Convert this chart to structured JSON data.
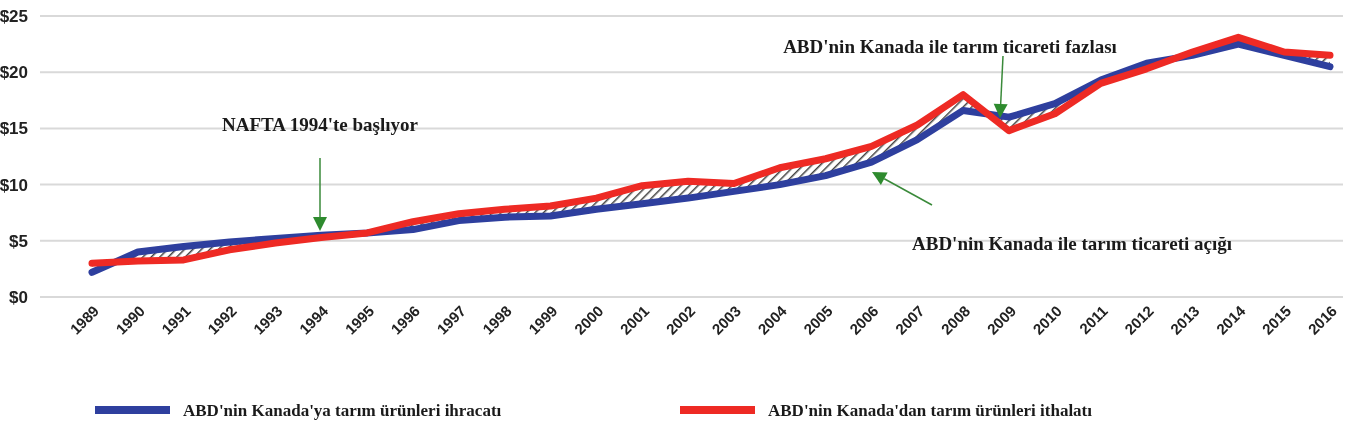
{
  "chart_data": {
    "type": "line",
    "categories": [
      "1989",
      "1990",
      "1991",
      "1992",
      "1993",
      "1994",
      "1995",
      "1996",
      "1997",
      "1998",
      "1999",
      "2000",
      "2001",
      "2002",
      "2003",
      "2004",
      "2005",
      "2006",
      "2007",
      "2008",
      "2009",
      "2010",
      "2011",
      "2012",
      "2013",
      "2014",
      "2015",
      "2016"
    ],
    "series": [
      {
        "name": "ABD'nin Kanada'ya tarım ürünleri ihracatı",
        "color": "#2e3f9e",
        "values": [
          2.2,
          4.0,
          4.5,
          4.9,
          5.2,
          5.5,
          5.7,
          6.0,
          6.8,
          7.1,
          7.2,
          7.8,
          8.3,
          8.8,
          9.4,
          10.0,
          10.8,
          12.0,
          14.0,
          16.6,
          16.0,
          17.2,
          19.3,
          20.8,
          21.5,
          22.5,
          21.5,
          20.5
        ],
        "lower": [
          2.2,
          4.0,
          4.5,
          4.9,
          5.2,
          5.5,
          5.7,
          6.0,
          6.8,
          7.1,
          7.2,
          7.8,
          8.3,
          8.8,
          9.4,
          10.0,
          10.8,
          12.0,
          14.0,
          16.6,
          16.0,
          17.2,
          19.3,
          20.8,
          21.5,
          22.5,
          21.5,
          20.5
        ],
        "upper": [
          3.0,
          3.2,
          3.3,
          4.2,
          4.8,
          5.3,
          5.7,
          6.7,
          7.4,
          7.8,
          8.1,
          8.8,
          9.9,
          10.3,
          10.1,
          11.5,
          12.3,
          13.4,
          15.3,
          18.0,
          14.8,
          16.3,
          19.0,
          20.3,
          21.8,
          23.1,
          21.8,
          21.5
        ]
      },
      {
        "name": "ABD'nin Kanada'dan tarım ürünleri ithalatı",
        "color": "#ee2a24",
        "values": [
          3.0,
          3.2,
          3.3,
          4.2,
          4.8,
          5.3,
          5.7,
          6.7,
          7.4,
          7.8,
          8.1,
          8.8,
          9.9,
          10.3,
          10.1,
          11.5,
          12.3,
          13.4,
          15.3,
          18.0,
          14.8,
          16.3,
          19.0,
          20.3,
          21.8,
          23.1,
          21.8,
          21.5
        ]
      }
    ],
    "ylim": [
      0,
      25
    ],
    "yticks": [
      {
        "value": 0,
        "label": "$0"
      },
      {
        "value": 5,
        "label": "$5"
      },
      {
        "value": 10,
        "label": "$10"
      },
      {
        "value": 15,
        "label": "$15"
      },
      {
        "value": 20,
        "label": "$20"
      },
      {
        "value": 25,
        "label": "$25"
      }
    ],
    "grid": "y",
    "legend": "bottom",
    "marker": "none",
    "line_style": "solid",
    "annotations": [
      "NAFTA 1994'te başlıyor",
      "ABD'nin Kanada ile tarım ticareti fazlası",
      "ABD'nin Kanada ile tarım ticareti açığı"
    ]
  }
}
